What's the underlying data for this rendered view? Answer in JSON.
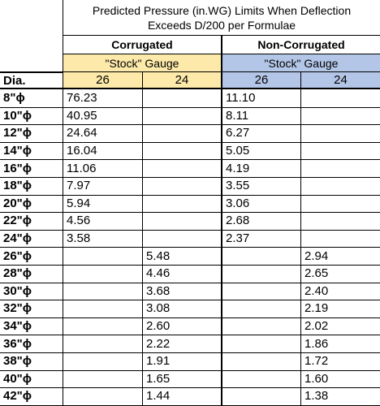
{
  "header": {
    "title_line1": "Predicted Pressure (in.WG) Limits When Deflection",
    "title_line2": "Exceeds D/200 per Formulae",
    "corrugated": "Corrugated",
    "non_corrugated": "Non-Corrugated",
    "stock_gauge": "\"Stock\" Gauge",
    "dia": "Dia.",
    "gauges": [
      "26",
      "24",
      "26",
      "24"
    ]
  },
  "colors": {
    "corrugated_gauge_bg": "#fde9a9",
    "non_corrugated_gauge_bg": "#b4c6e7"
  },
  "rows": [
    {
      "dia": "8\"ϕ",
      "c26": "76.23",
      "c24": "",
      "n26": "11.10",
      "n24": ""
    },
    {
      "dia": "10\"ϕ",
      "c26": "40.95",
      "c24": "",
      "n26": "8.11",
      "n24": ""
    },
    {
      "dia": "12\"ϕ",
      "c26": "24.64",
      "c24": "",
      "n26": "6.27",
      "n24": ""
    },
    {
      "dia": "14\"ϕ",
      "c26": "16.04",
      "c24": "",
      "n26": "5.05",
      "n24": ""
    },
    {
      "dia": "16\"ϕ",
      "c26": "11.06",
      "c24": "",
      "n26": "4.19",
      "n24": ""
    },
    {
      "dia": "18\"ϕ",
      "c26": "7.97",
      "c24": "",
      "n26": "3.55",
      "n24": ""
    },
    {
      "dia": "20\"ϕ",
      "c26": "5.94",
      "c24": "",
      "n26": "3.06",
      "n24": ""
    },
    {
      "dia": "22\"ϕ",
      "c26": "4.56",
      "c24": "",
      "n26": "2.68",
      "n24": ""
    },
    {
      "dia": "24\"ϕ",
      "c26": "3.58",
      "c24": "",
      "n26": "2.37",
      "n24": ""
    },
    {
      "dia": "26\"ϕ",
      "c26": "",
      "c24": "5.48",
      "n26": "",
      "n24": "2.94"
    },
    {
      "dia": "28\"ϕ",
      "c26": "",
      "c24": "4.46",
      "n26": "",
      "n24": "2.65"
    },
    {
      "dia": "30\"ϕ",
      "c26": "",
      "c24": "3.68",
      "n26": "",
      "n24": "2.40"
    },
    {
      "dia": "32\"ϕ",
      "c26": "",
      "c24": "3.08",
      "n26": "",
      "n24": "2.19"
    },
    {
      "dia": "34\"ϕ",
      "c26": "",
      "c24": "2.60",
      "n26": "",
      "n24": "2.02"
    },
    {
      "dia": "36\"ϕ",
      "c26": "",
      "c24": "2.22",
      "n26": "",
      "n24": "1.86"
    },
    {
      "dia": "38\"ϕ",
      "c26": "",
      "c24": "1.91",
      "n26": "",
      "n24": "1.72"
    },
    {
      "dia": "40\"ϕ",
      "c26": "",
      "c24": "1.65",
      "n26": "",
      "n24": "1.60"
    },
    {
      "dia": "42\"ϕ",
      "c26": "",
      "c24": "1.44",
      "n26": "",
      "n24": "1.38"
    }
  ]
}
